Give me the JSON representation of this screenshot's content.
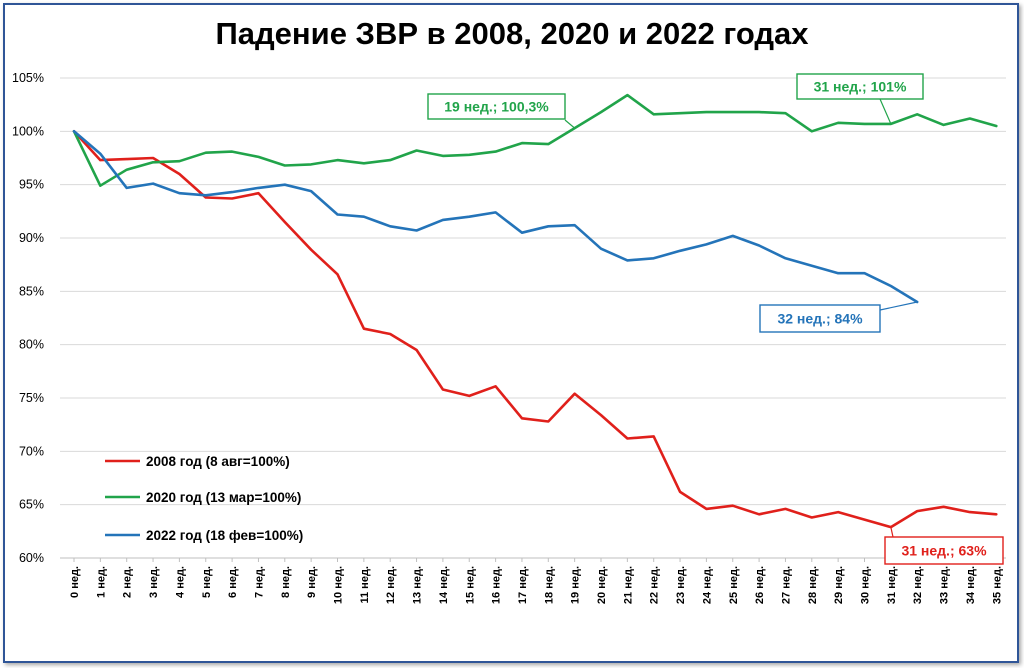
{
  "title": "Падение ЗВР в 2008, 2020 и 2022 годах",
  "chart_data": {
    "type": "line",
    "title": "Падение ЗВР в 2008, 2020 и 2022 годах",
    "xlabel": "",
    "ylabel": "",
    "ylim": [
      60,
      105
    ],
    "yticks": [
      "60%",
      "65%",
      "70%",
      "75%",
      "80%",
      "85%",
      "90%",
      "95%",
      "100%",
      "105%"
    ],
    "grid": true,
    "legend_position": "bottom-left",
    "categories": [
      "0 нед.",
      "1 нед.",
      "2 нед.",
      "3 нед.",
      "4 нед.",
      "5 нед.",
      "6 нед.",
      "7 нед.",
      "8 нед.",
      "9 нед.",
      "10 нед.",
      "11 нед.",
      "12 нед.",
      "13 нед.",
      "14 нед.",
      "15 нед.",
      "16 нед.",
      "17 нед.",
      "18 нед.",
      "19 нед.",
      "20 нед.",
      "21 нед.",
      "22 нед.",
      "23 нед.",
      "24 нед.",
      "25 нед.",
      "26 нед.",
      "27 нед.",
      "28 нед.",
      "29 нед.",
      "30 нед.",
      "31 нед.",
      "32 нед.",
      "33 нед.",
      "34 нед.",
      "35 нед."
    ],
    "series": [
      {
        "name": "2008 год (8 авг=100%)",
        "color": "#e0201b",
        "values": [
          100,
          97.3,
          97.4,
          97.5,
          96.0,
          93.8,
          93.7,
          94.2,
          91.5,
          88.9,
          86.6,
          81.5,
          81.0,
          79.5,
          75.8,
          75.2,
          76.1,
          73.1,
          72.8,
          75.4,
          73.4,
          71.2,
          71.4,
          66.2,
          64.6,
          64.9,
          64.1,
          64.6,
          63.8,
          64.3,
          63.6,
          62.9,
          64.4,
          64.8,
          64.3,
          64.1
        ]
      },
      {
        "name": "2020 год (13 мар=100%)",
        "color": "#21a44a",
        "values": [
          100,
          94.9,
          96.4,
          97.1,
          97.2,
          98.0,
          98.1,
          97.6,
          96.8,
          96.9,
          97.3,
          97.0,
          97.3,
          98.2,
          97.7,
          97.8,
          98.1,
          98.9,
          98.8,
          100.3,
          101.8,
          103.4,
          101.6,
          101.7,
          101.8,
          101.8,
          101.8,
          101.7,
          100.0,
          100.8,
          100.7,
          100.7,
          101.6,
          100.6,
          101.2,
          100.5
        ]
      },
      {
        "name": "2022 год (18 фев=100%)",
        "color": "#2474b9",
        "values": [
          100,
          97.9,
          94.7,
          95.1,
          94.2,
          94.0,
          94.3,
          94.7,
          95.0,
          94.4,
          92.2,
          92.0,
          91.1,
          90.7,
          91.7,
          92.0,
          92.4,
          90.5,
          91.1,
          91.2,
          89.0,
          87.9,
          88.1,
          88.8,
          89.4,
          90.2,
          89.3,
          88.1,
          87.4,
          86.7,
          86.7,
          85.5,
          84.0,
          null,
          null,
          null
        ]
      }
    ],
    "annotations": [
      {
        "text": "19 нед.; 100,3%",
        "series": "2020 год (13 мар=100%)",
        "color": "#21a44a"
      },
      {
        "text": "31 нед.; 101%",
        "series": "2020 год (13 мар=100%)",
        "color": "#21a44a"
      },
      {
        "text": "32 нед.; 84%",
        "series": "2022 год (18 фев=100%)",
        "color": "#2474b9"
      },
      {
        "text": "31 нед.; 63%",
        "series": "2008 год (8 авг=100%)",
        "color": "#e0201b"
      }
    ]
  }
}
